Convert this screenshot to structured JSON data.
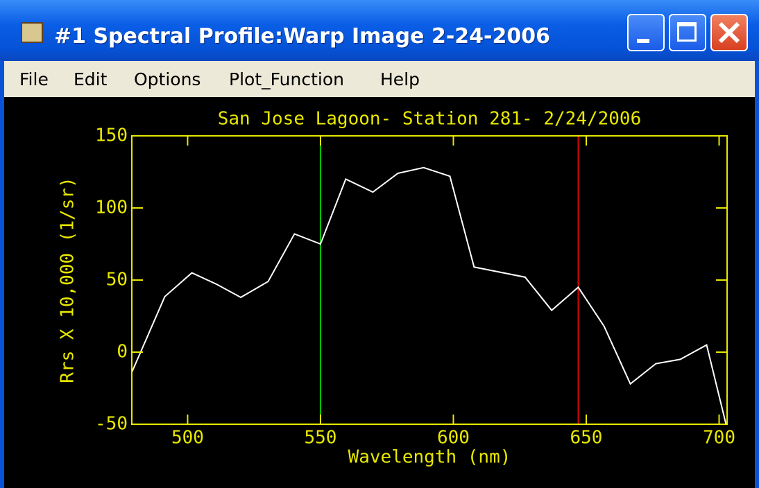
{
  "window": {
    "title": "#1 Spectral Profile:Warp Image 2-24-2006",
    "menu": [
      "File",
      "Edit",
      "Options",
      "Plot_Function",
      "Help"
    ]
  },
  "chart_data": {
    "type": "line",
    "title": "San Jose Lagoon- Station 281- 2/24/2006",
    "xlabel": "Wavelength (nm)",
    "ylabel": "Rrs X 10,000 (1/sr)",
    "x": [
      479,
      491.4,
      501.6,
      511,
      520,
      530.3,
      540.2,
      550,
      559.5,
      569.7,
      579.1,
      588.8,
      598.7,
      607.8,
      627,
      637,
      647,
      656.7,
      666.6,
      676.2,
      685.4,
      695.3,
      702.6
    ],
    "values": [
      -14,
      38.5,
      55,
      47,
      38,
      49,
      82,
      75,
      120,
      111,
      124,
      128,
      122,
      59,
      52,
      29,
      45,
      18,
      -22,
      -8,
      -5,
      5,
      -50
    ],
    "color": "#ffffff",
    "axis_color": "#e8e800",
    "markers": [
      {
        "x": 550,
        "color": "#00c800"
      },
      {
        "x": 647,
        "color": "#e00000"
      }
    ],
    "xlim": [
      479,
      703
    ],
    "ylim": [
      -50,
      150
    ],
    "xticks": [
      500,
      550,
      600,
      650,
      700
    ],
    "yticks": [
      -50,
      0,
      50,
      100,
      150
    ]
  }
}
